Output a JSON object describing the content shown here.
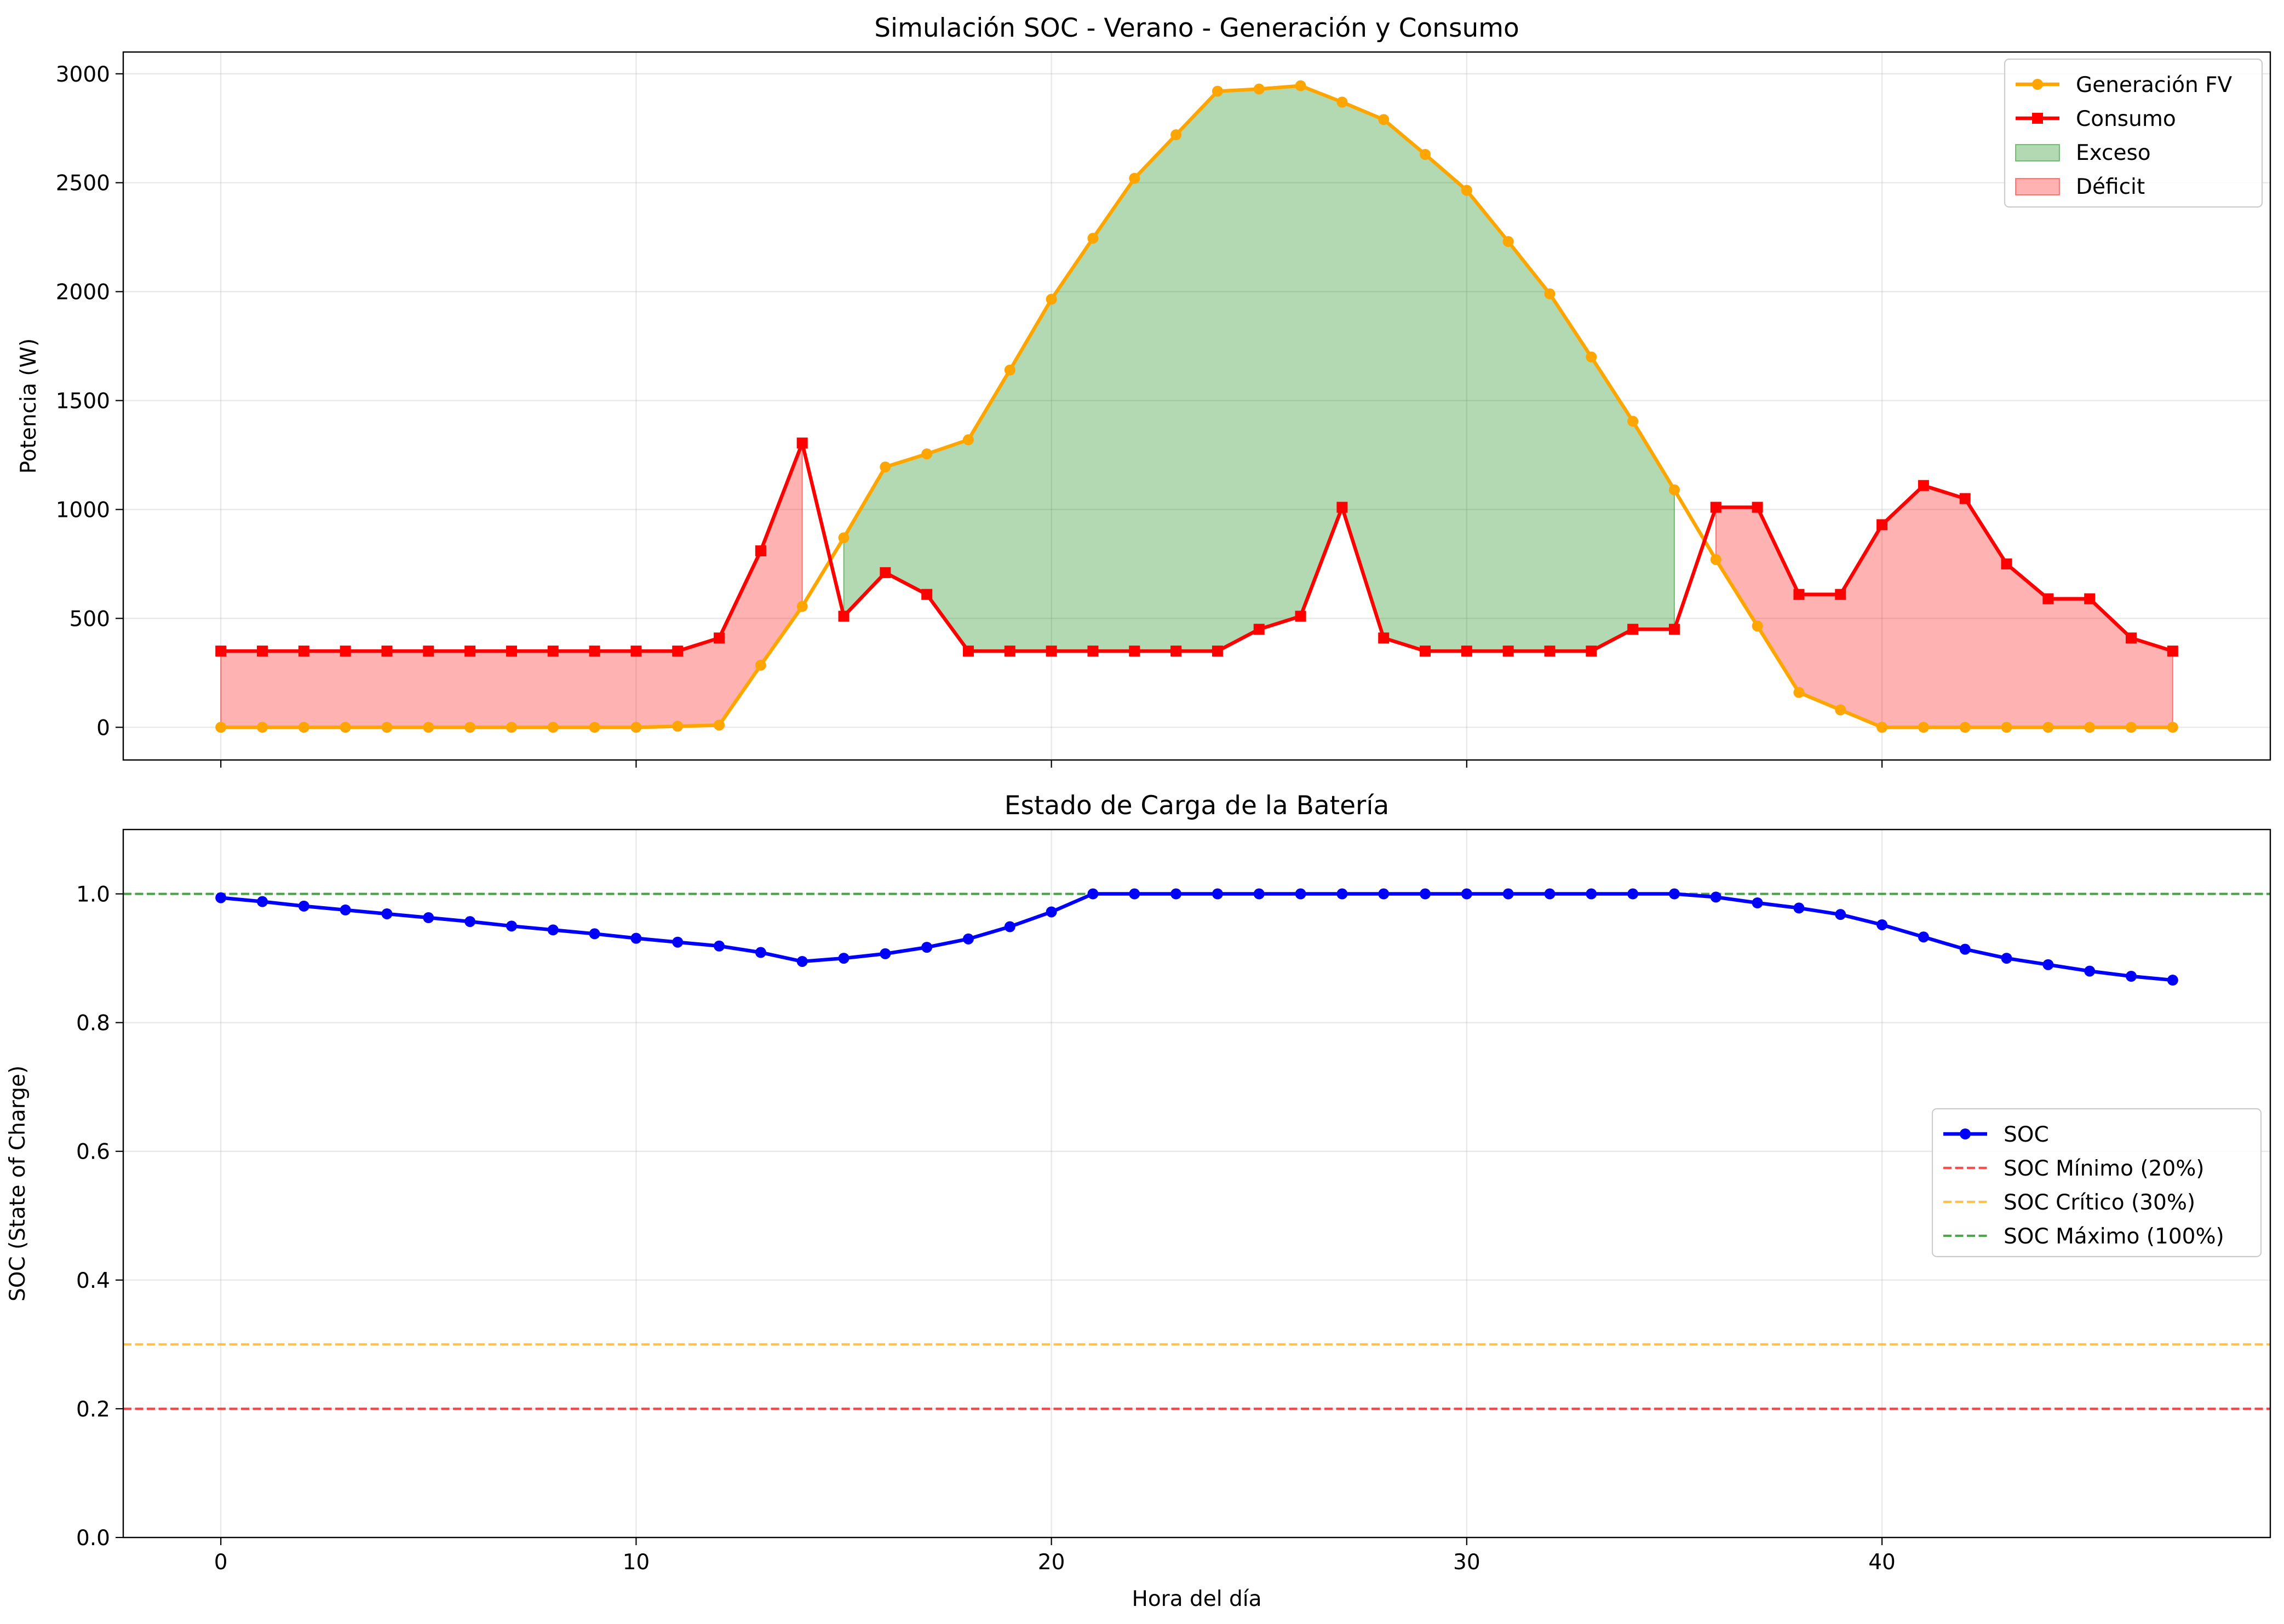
{
  "chart_data": [
    {
      "type": "line",
      "title": "Simulación SOC - Verano - Generación y Consumo",
      "xlabel": "",
      "ylabel": "Potencia (W)",
      "xlim": [
        -2.35,
        49.35
      ],
      "ylim": [
        -150,
        3100
      ],
      "xticks": [
        0,
        10,
        20,
        30,
        40
      ],
      "yticks": [
        0,
        500,
        1000,
        1500,
        2000,
        2500,
        3000
      ],
      "grid": true,
      "legend_position": "top-right",
      "x": [
        0,
        1,
        2,
        3,
        4,
        5,
        6,
        7,
        8,
        9,
        10,
        11,
        12,
        13,
        14,
        15,
        16,
        17,
        18,
        19,
        20,
        21,
        22,
        23,
        24,
        25,
        26,
        27,
        28,
        29,
        30,
        31,
        32,
        33,
        34,
        35,
        36,
        37,
        38,
        39,
        40,
        41,
        42,
        43,
        44,
        45,
        46,
        47
      ],
      "series": [
        {
          "name": "Generación FV",
          "color": "#ffa500",
          "marker": "circle",
          "values": [
            0,
            0,
            0,
            0,
            0,
            0,
            0,
            0,
            0,
            0,
            0,
            5,
            10,
            285,
            555,
            870,
            1195,
            1255,
            1320,
            1640,
            1965,
            2245,
            2520,
            2720,
            2920,
            2930,
            2945,
            2870,
            2790,
            2630,
            2465,
            2230,
            1990,
            1700,
            1405,
            1090,
            770,
            465,
            160,
            80,
            0,
            0,
            0,
            0,
            0,
            0,
            0,
            0
          ]
        },
        {
          "name": "Consumo",
          "color": "#ff0000",
          "marker": "square",
          "values": [
            350,
            350,
            350,
            350,
            350,
            350,
            350,
            350,
            350,
            350,
            350,
            350,
            410,
            810,
            1305,
            510,
            710,
            610,
            350,
            350,
            350,
            350,
            350,
            350,
            350,
            450,
            510,
            1010,
            410,
            350,
            350,
            350,
            350,
            350,
            450,
            450,
            1010,
            1010,
            610,
            610,
            930,
            1110,
            1050,
            750,
            590,
            590,
            410,
            350
          ]
        }
      ],
      "fills": [
        {
          "name": "Exceso",
          "color": "#008000",
          "opacity": 0.3
        },
        {
          "name": "Déficit",
          "color": "#ff0000",
          "opacity": 0.3
        }
      ]
    },
    {
      "type": "line",
      "title": "Estado de Carga de la Batería",
      "xlabel": "Hora del día",
      "ylabel": "SOC (State of Charge)",
      "xlim": [
        -2.35,
        49.35
      ],
      "ylim": [
        0,
        1.1
      ],
      "xticks": [
        0,
        10,
        20,
        30,
        40
      ],
      "xtick_labels": [
        "0",
        "10",
        "20",
        "30",
        "40"
      ],
      "yticks": [
        0.0,
        0.2,
        0.4,
        0.6,
        0.8,
        1.0
      ],
      "ytick_labels": [
        "0.0",
        "0.2",
        "0.4",
        "0.6",
        "0.8",
        "1.0"
      ],
      "grid": true,
      "legend_position": "center-right",
      "x": [
        0,
        1,
        2,
        3,
        4,
        5,
        6,
        7,
        8,
        9,
        10,
        11,
        12,
        13,
        14,
        15,
        16,
        17,
        18,
        19,
        20,
        21,
        22,
        23,
        24,
        25,
        26,
        27,
        28,
        29,
        30,
        31,
        32,
        33,
        34,
        35,
        36,
        37,
        38,
        39,
        40,
        41,
        42,
        43,
        44,
        45,
        46,
        47
      ],
      "series": [
        {
          "name": "SOC",
          "color": "#0000ff",
          "marker": "circle",
          "values": [
            0.994,
            0.988,
            0.981,
            0.975,
            0.969,
            0.963,
            0.957,
            0.95,
            0.944,
            0.938,
            0.931,
            0.925,
            0.919,
            0.909,
            0.895,
            0.9,
            0.907,
            0.917,
            0.93,
            0.949,
            0.972,
            1.0,
            1.0,
            1.0,
            1.0,
            1.0,
            1.0,
            1.0,
            1.0,
            1.0,
            1.0,
            1.0,
            1.0,
            1.0,
            1.0,
            1.0,
            0.995,
            0.986,
            0.978,
            0.968,
            0.952,
            0.933,
            0.914,
            0.9,
            0.89,
            0.88,
            0.872,
            0.866
          ]
        }
      ],
      "hlines": [
        {
          "name": "SOC Mínimo (20%)",
          "y": 0.2,
          "color": "#ff0000",
          "style": "dashed"
        },
        {
          "name": "SOC Crítico (30%)",
          "y": 0.3,
          "color": "#ffa500",
          "style": "dashed"
        },
        {
          "name": "SOC Máximo (100%)",
          "y": 1.0,
          "color": "#008000",
          "style": "dashed"
        }
      ]
    }
  ]
}
